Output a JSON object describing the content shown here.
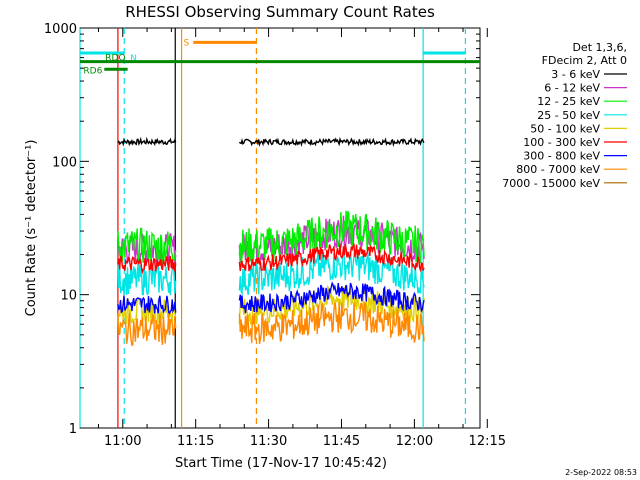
{
  "chart_data": {
    "type": "line",
    "title": "RHESSI Observing Summary Count Rates",
    "xlabel": "Start Time (17-Nov-17 10:45:42)",
    "ylabel": "Count Rate (s⁻¹ detector⁻¹)",
    "y_scale": "log",
    "ylim": [
      1,
      1000
    ],
    "xlim_minutes": [
      -8.8,
      73.5
    ],
    "x_ticks": [
      {
        "label": "11:00",
        "v": 0
      },
      {
        "label": "11:15",
        "v": 15
      },
      {
        "label": "11:30",
        "v": 30
      },
      {
        "label": "11:45",
        "v": 45
      },
      {
        "label": "12:00",
        "v": 60
      },
      {
        "label": "12:15",
        "v": 75
      }
    ],
    "y_ticks": [
      {
        "label": "1",
        "v": 1
      },
      {
        "label": "10",
        "v": 10
      },
      {
        "label": "100",
        "v": 100
      },
      {
        "label": "1000",
        "v": 1000
      }
    ],
    "legend_header": [
      "Det 1,3,6,",
      "FDecim 2, Att 0"
    ],
    "segments_minutes": [
      [
        -1,
        11
      ],
      [
        24,
        62
      ]
    ],
    "series": [
      {
        "name": "3 - 6 keV",
        "color": "#000000",
        "base": 140,
        "bump": 0.0,
        "noise": 0.02
      },
      {
        "name": "6 - 12 keV",
        "color": "#cc33cc",
        "base": 22,
        "bump": 0.35,
        "noise": 0.12
      },
      {
        "name": "12 - 25 keV",
        "color": "#00ee00",
        "base": 23,
        "bump": 0.35,
        "noise": 0.14
      },
      {
        "name": "25 - 50 keV",
        "color": "#00e5e5",
        "base": 13,
        "bump": 0.3,
        "noise": 0.12
      },
      {
        "name": "50 - 100 keV",
        "color": "#e0d000",
        "base": 7.5,
        "bump": 0.25,
        "noise": 0.1
      },
      {
        "name": "100 - 300 keV",
        "color": "#ff0000",
        "base": 17,
        "bump": 0.25,
        "noise": 0.06
      },
      {
        "name": "300 - 800 keV",
        "color": "#0000ff",
        "base": 8.5,
        "bump": 0.25,
        "noise": 0.07
      },
      {
        "name": "800 - 7000 keV",
        "color": "#ff8800",
        "base": 5.5,
        "bump": 0.25,
        "noise": 0.12
      },
      {
        "name": "7000 - 15000 keV",
        "color": "#aa6600",
        "base": 0,
        "bump": 0,
        "noise": 0
      }
    ],
    "flags": [
      {
        "label": "N",
        "color": "#00e5e5",
        "y": 650,
        "ranges": [
          [
            -8.8,
            0.3
          ],
          [
            61.8,
            70.5
          ]
        ]
      },
      {
        "label": "RDO",
        "color": "#008800",
        "y": 560,
        "ranges": [
          [
            -8.8,
            73.5
          ]
        ]
      },
      {
        "label": "RD6",
        "color": "#008800",
        "y": 490,
        "ranges": [
          [
            -3.8,
            1.0
          ]
        ]
      },
      {
        "label": "S",
        "color": "#ff8800",
        "y": 780,
        "ranges": [
          [
            14.5,
            27.5
          ]
        ]
      }
    ],
    "vlines": [
      {
        "v": -8.8,
        "color": "#00e5e5",
        "style": "solid"
      },
      {
        "v": -1.0,
        "color": "#ff0000",
        "style": "solid"
      },
      {
        "v": 0.3,
        "color": "#00e5e5",
        "style": "dashed"
      },
      {
        "v": 10.8,
        "color": "#000000",
        "style": "solid"
      },
      {
        "v": 12.1,
        "color": "#ff8800",
        "style": "solid"
      },
      {
        "v": 27.5,
        "color": "#ff8800",
        "style": "dashed"
      },
      {
        "v": 61.8,
        "color": "#00e5e5",
        "style": "solid"
      },
      {
        "v": 70.5,
        "color": "#00e5e5",
        "style": "dashed"
      }
    ]
  },
  "footer": {
    "timestamp": "2-Sep-2022 08:53"
  }
}
